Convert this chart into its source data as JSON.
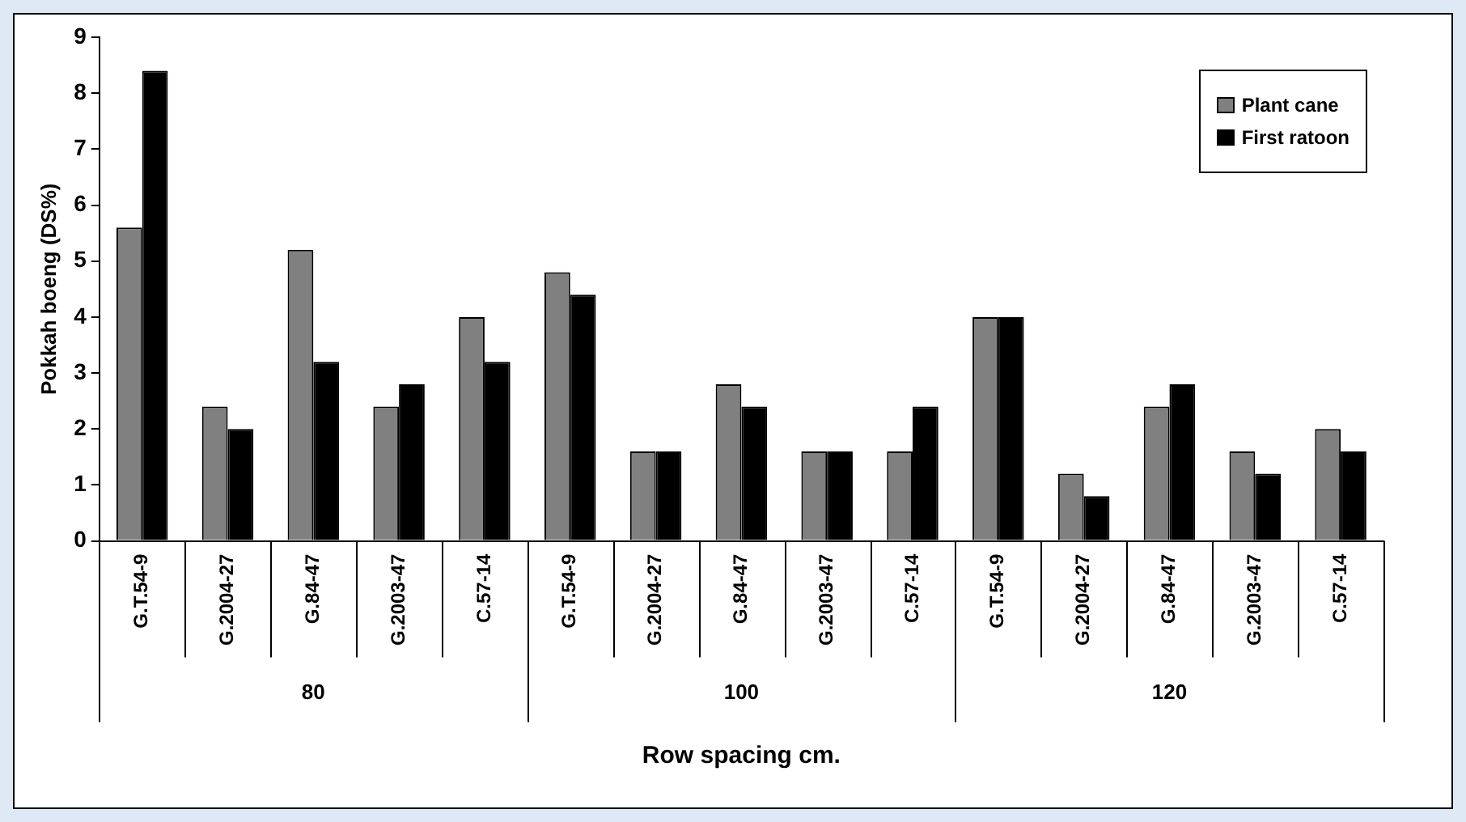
{
  "chart_data": {
    "type": "bar",
    "xlabel": "Row spacing cm.",
    "ylabel": "Pokkah boeng (DS%)",
    "categories": [
      "G.T.54-9",
      "G.2004-27",
      "G.84-47",
      "G.2003-47",
      "C.57-14",
      "G.T.54-9",
      "G.2004-27",
      "G.84-47",
      "G.2003-47",
      "C.57-14",
      "G.T.54-9",
      "G.2004-27",
      "G.84-47",
      "G.2003-47",
      "C.57-14"
    ],
    "series": [
      {
        "name": "Plant cane",
        "color": "#808080",
        "values": [
          5.6,
          2.4,
          5.2,
          2.4,
          4.0,
          4.8,
          1.6,
          2.8,
          1.6,
          1.6,
          4.0,
          1.2,
          2.4,
          1.6,
          2.0
        ]
      },
      {
        "name": "First ratoon",
        "color": "#000000",
        "values": [
          8.4,
          2.0,
          3.2,
          2.8,
          3.2,
          4.4,
          1.6,
          2.4,
          1.6,
          2.4,
          4.0,
          0.8,
          2.8,
          1.2,
          1.6
        ]
      }
    ],
    "annotations": [
      "80",
      "100",
      "120"
    ],
    "ylim": [
      0,
      9
    ],
    "yticks": [
      0,
      1,
      2,
      3,
      4,
      5,
      6,
      7,
      8,
      9
    ],
    "grid": false,
    "legend": "top right"
  }
}
